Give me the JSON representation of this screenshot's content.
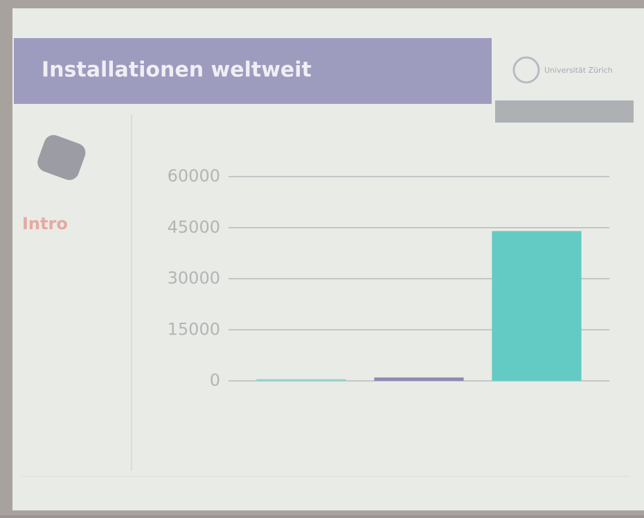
{
  "slide": {
    "title": "Installationen weltweit",
    "logo": "Universität Zürich",
    "section": "Intro"
  },
  "chart_data": {
    "type": "bar",
    "categories": [
      null,
      null,
      null
    ],
    "values": [
      500,
      1000,
      44000
    ],
    "colors": [
      "#8fd3d0",
      "#8e8bb2",
      "#63cbc4"
    ],
    "ylim": [
      0,
      60000
    ],
    "yticks": [
      0,
      15000,
      30000,
      45000,
      60000
    ],
    "grid": true
  }
}
